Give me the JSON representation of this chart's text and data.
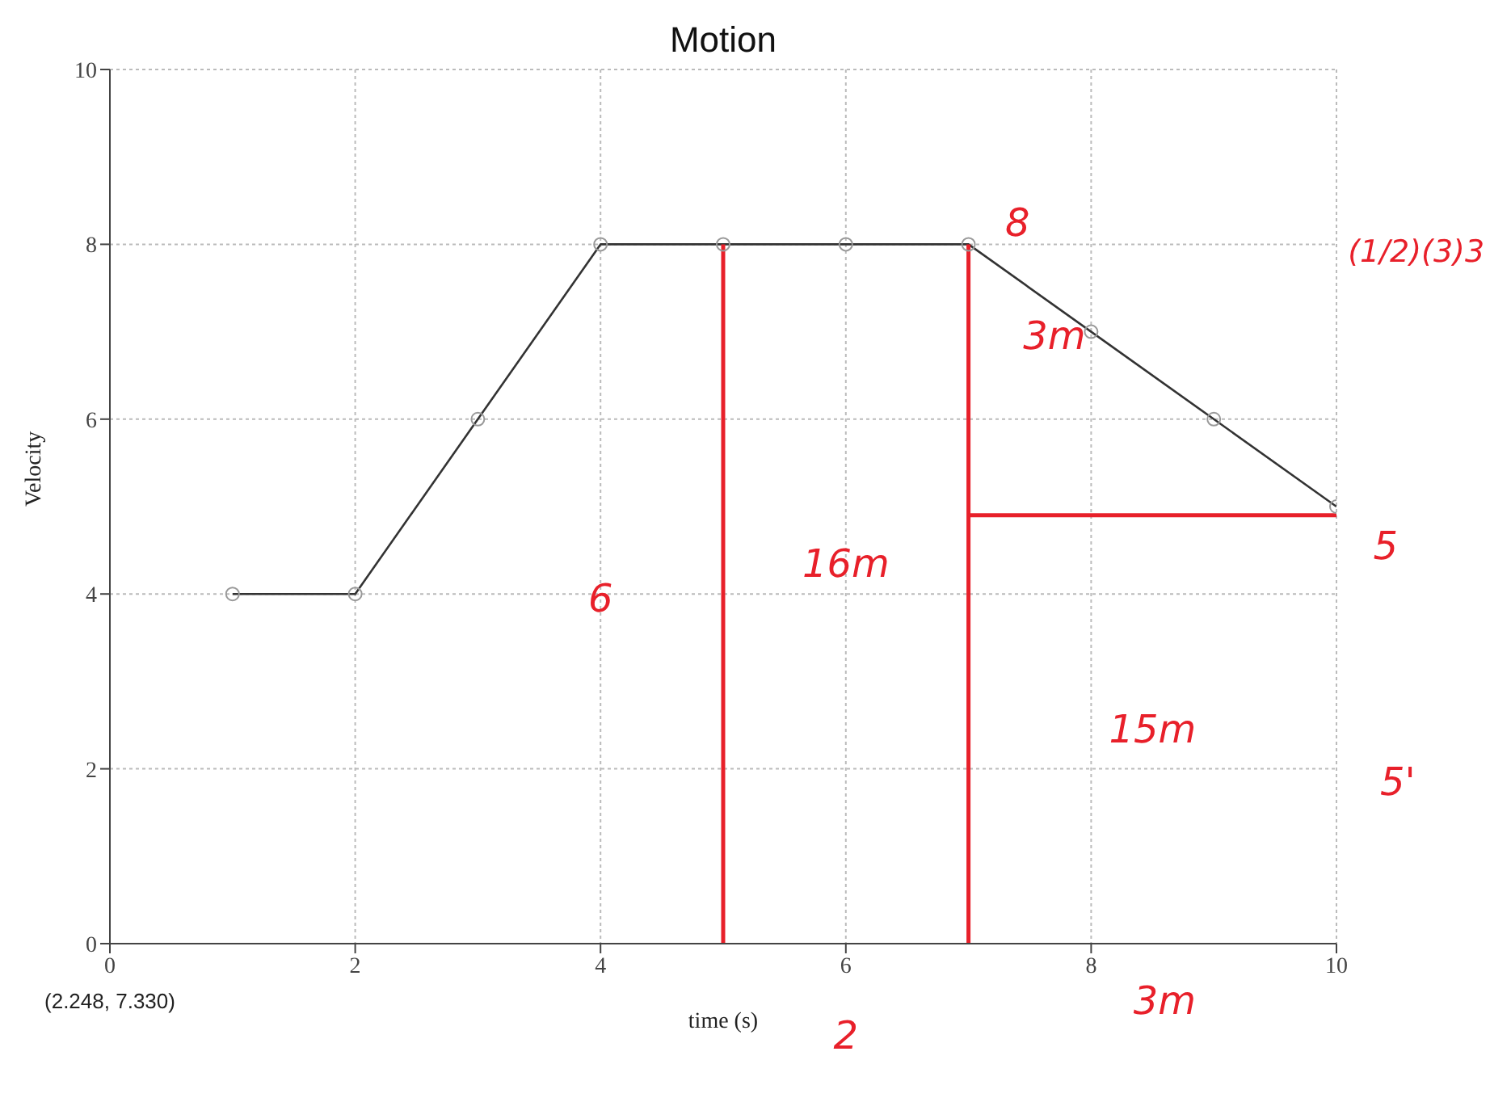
{
  "chart_data": {
    "type": "line",
    "title": "Motion",
    "xlabel": "time (s)",
    "ylabel": "Velocity",
    "xlim": [
      0,
      10
    ],
    "xticks": [
      0,
      2,
      4,
      6,
      8,
      10
    ],
    "ylim": [
      0,
      10
    ],
    "yticks": [
      0,
      2,
      4,
      6,
      8,
      10
    ],
    "grid": true,
    "marker": "circle",
    "series": [
      {
        "color": "#333333",
        "x": [
          1,
          2,
          3,
          4,
          5,
          6,
          7,
          8,
          9,
          10
        ],
        "values": [
          4,
          4,
          6,
          8,
          8,
          8,
          8,
          7,
          6,
          5
        ]
      },
      {
        "color": "#e8202a",
        "marker": "none",
        "x": [
          5,
          5
        ],
        "values": [
          0,
          8
        ]
      },
      {
        "color": "#e8202a",
        "marker": "none",
        "x": [
          7,
          7
        ],
        "values": [
          0,
          8
        ]
      },
      {
        "color": "#e8202a",
        "marker": "none",
        "x": [
          7,
          10
        ],
        "values": [
          4.9,
          4.9
        ]
      }
    ],
    "annotations": [
      "8",
      "3m",
      "16m",
      "6",
      "5",
      "15m",
      "5'",
      "(1/2)(3)3",
      "2",
      "3m",
      "(2.248, 7.330)"
    ]
  }
}
